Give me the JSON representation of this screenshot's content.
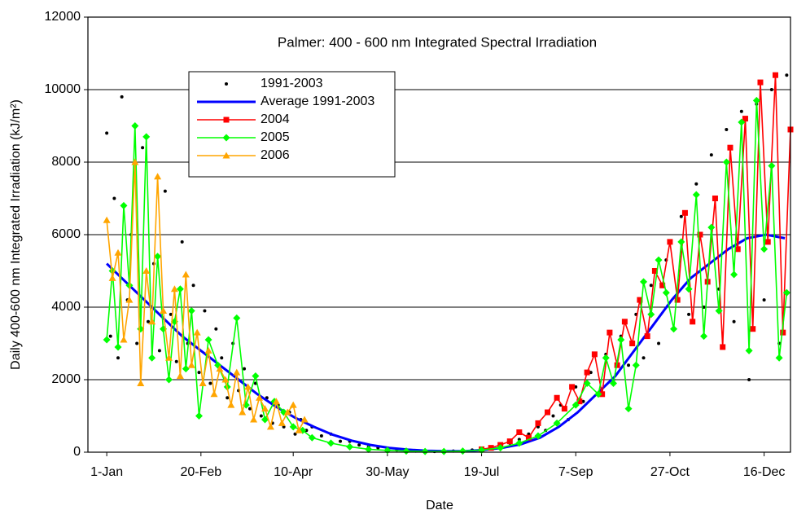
{
  "chart_data": {
    "type": "scatter-line",
    "title": "Palmer: 400 - 600 nm Integrated Spectral Irradiation",
    "x_label": "Date",
    "y_label": "Daily 400-600 nm Integrated Irradiation (kJ/m²)",
    "xlim": [
      -9,
      364
    ],
    "xticks": [
      {
        "value": 1,
        "label": "1-Jan"
      },
      {
        "value": 51,
        "label": "20-Feb"
      },
      {
        "value": 100,
        "label": "10-Apr"
      },
      {
        "value": 150,
        "label": "30-May"
      },
      {
        "value": 200,
        "label": "19-Jul"
      },
      {
        "value": 250,
        "label": "7-Sep"
      },
      {
        "value": 300,
        "label": "27-Oct"
      },
      {
        "value": 350,
        "label": "16-Dec"
      }
    ],
    "ylim": [
      0,
      12000
    ],
    "yticks": [
      0,
      2000,
      4000,
      6000,
      8000,
      10000,
      12000
    ],
    "grid": true,
    "series": [
      {
        "name": "1991-2003",
        "color": "#000000",
        "marker": "dot",
        "line": false,
        "x": [
          1,
          3,
          5,
          7,
          9,
          12,
          14,
          17,
          20,
          23,
          26,
          29,
          32,
          35,
          38,
          41,
          44,
          47,
          50,
          53,
          56,
          59,
          62,
          65,
          68,
          71,
          74,
          77,
          80,
          83,
          86,
          89,
          92,
          95,
          98,
          101,
          104,
          107,
          110,
          115,
          120,
          125,
          130,
          135,
          140,
          145,
          150,
          155,
          160,
          165,
          170,
          175,
          180,
          185,
          190,
          195,
          200,
          205,
          210,
          215,
          220,
          225,
          230,
          234,
          238,
          242,
          246,
          250,
          254,
          258,
          262,
          266,
          270,
          274,
          278,
          282,
          286,
          290,
          294,
          298,
          302,
          306,
          310,
          314,
          318,
          322,
          326,
          330,
          334,
          338,
          342,
          346,
          350,
          354,
          358,
          362
        ],
        "values": [
          8800,
          3200,
          7000,
          2600,
          9800,
          4200,
          6000,
          3000,
          8400,
          3600,
          5200,
          2800,
          7200,
          3800,
          2500,
          5800,
          3000,
          4600,
          2200,
          3900,
          1900,
          3400,
          2600,
          1500,
          3000,
          1700,
          2300,
          1200,
          1900,
          1000,
          1500,
          800,
          1300,
          700,
          1100,
          500,
          900,
          600,
          700,
          450,
          500,
          300,
          300,
          200,
          150,
          120,
          80,
          60,
          40,
          30,
          20,
          20,
          25,
          30,
          50,
          60,
          90,
          120,
          180,
          250,
          350,
          500,
          700,
          600,
          1000,
          1300,
          900,
          1800,
          1400,
          2200,
          1600,
          2700,
          2000,
          3200,
          2400,
          3800,
          2600,
          4600,
          3000,
          5300,
          3400,
          6500,
          3800,
          7400,
          4000,
          8200,
          4500,
          8900,
          3600,
          9400,
          2000,
          9600,
          4200,
          10000,
          3000,
          10400
        ]
      },
      {
        "name": "Average 1991-2003",
        "color": "#0000ff",
        "marker": "none",
        "line": true,
        "x": [
          1,
          11,
          21,
          31,
          41,
          51,
          61,
          71,
          81,
          91,
          101,
          111,
          121,
          131,
          141,
          151,
          161,
          171,
          181,
          191,
          201,
          211,
          221,
          231,
          241,
          251,
          261,
          271,
          281,
          291,
          301,
          311,
          321,
          331,
          341,
          351,
          361
        ],
        "values": [
          5200,
          4700,
          4200,
          3700,
          3200,
          2800,
          2400,
          2000,
          1600,
          1250,
          950,
          700,
          480,
          320,
          200,
          120,
          70,
          40,
          30,
          30,
          60,
          120,
          220,
          400,
          700,
          1100,
          1600,
          2100,
          2800,
          3500,
          4200,
          4800,
          5200,
          5600,
          5900,
          6000,
          5900
        ]
      },
      {
        "name": "2004",
        "color": "#ff0000",
        "marker": "square",
        "line": true,
        "x": [
          200,
          205,
          210,
          215,
          220,
          225,
          230,
          235,
          240,
          244,
          248,
          252,
          256,
          260,
          264,
          268,
          272,
          276,
          280,
          284,
          288,
          292,
          296,
          300,
          304,
          308,
          312,
          316,
          320,
          324,
          328,
          332,
          336,
          340,
          344,
          348,
          352,
          356,
          360,
          364
        ],
        "values": [
          80,
          120,
          200,
          300,
          550,
          400,
          800,
          1100,
          1500,
          1200,
          1800,
          1400,
          2200,
          2700,
          1600,
          3300,
          2400,
          3600,
          3000,
          4200,
          3200,
          5000,
          4600,
          5800,
          4200,
          6600,
          3600,
          6000,
          4700,
          7000,
          2900,
          8400,
          5600,
          9200,
          3400,
          10200,
          5800,
          10400,
          3300,
          8900
        ]
      },
      {
        "name": "2005",
        "color": "#00ff00",
        "marker": "diamond",
        "line": true,
        "x": [
          1,
          4,
          7,
          10,
          13,
          16,
          19,
          22,
          25,
          28,
          31,
          34,
          37,
          40,
          43,
          46,
          50,
          55,
          60,
          65,
          70,
          75,
          80,
          85,
          90,
          95,
          100,
          105,
          110,
          120,
          130,
          140,
          150,
          160,
          170,
          180,
          190,
          200,
          210,
          220,
          230,
          240,
          250,
          256,
          262,
          266,
          270,
          274,
          278,
          282,
          286,
          290,
          294,
          298,
          302,
          306,
          310,
          314,
          318,
          322,
          326,
          330,
          334,
          338,
          342,
          346,
          350,
          354,
          358,
          362
        ],
        "values": [
          3100,
          5000,
          2900,
          6800,
          4600,
          9000,
          3400,
          8700,
          2600,
          5400,
          3400,
          2000,
          3600,
          4500,
          2300,
          3900,
          1000,
          3100,
          2400,
          1800,
          3700,
          1300,
          2100,
          900,
          1400,
          1100,
          700,
          600,
          400,
          250,
          150,
          80,
          50,
          30,
          20,
          20,
          30,
          60,
          120,
          250,
          450,
          800,
          1300,
          1900,
          1600,
          2600,
          1900,
          3100,
          1200,
          2400,
          4700,
          3800,
          5300,
          4400,
          3400,
          5800,
          4500,
          7100,
          3200,
          6200,
          3900,
          8000,
          4900,
          9100,
          2800,
          9700,
          5600,
          7900,
          2600,
          4400
        ]
      },
      {
        "name": "2006",
        "color": "#ffa500",
        "marker": "triangle",
        "line": true,
        "x": [
          1,
          4,
          7,
          10,
          13,
          16,
          19,
          22,
          25,
          28,
          31,
          34,
          37,
          40,
          43,
          46,
          49,
          52,
          55,
          58,
          61,
          64,
          67,
          70,
          73,
          76,
          79,
          82,
          85,
          88,
          91,
          94,
          97,
          100,
          103,
          106
        ],
        "values": [
          6400,
          4800,
          5500,
          3100,
          4200,
          8000,
          1900,
          5000,
          3600,
          7600,
          3900,
          2600,
          4500,
          2100,
          4900,
          2400,
          3300,
          1900,
          2800,
          1600,
          2300,
          2000,
          1300,
          2200,
          1100,
          1800,
          900,
          1500,
          1200,
          700,
          1400,
          800,
          1100,
          1300,
          600,
          900
        ]
      }
    ]
  }
}
